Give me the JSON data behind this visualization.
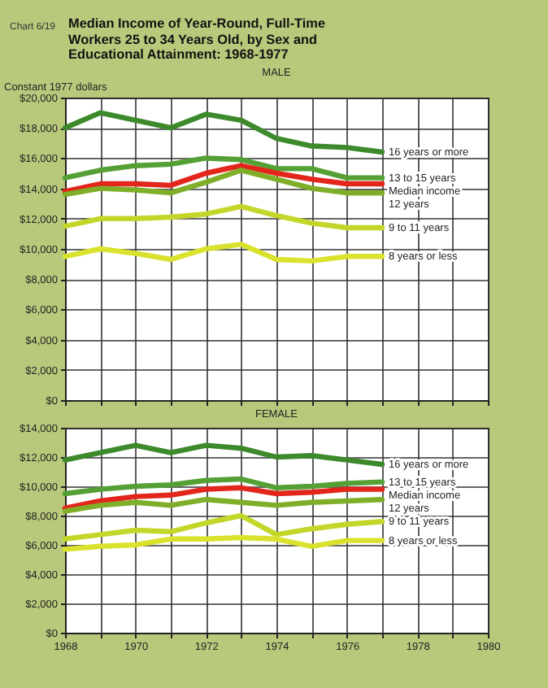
{
  "chart_data": [
    {
      "type": "line",
      "title": "Median Income of Year-Round, Full-Time Workers 25 to 34 Years Old, by Sex and Educational Attainment: 1968-1977",
      "subtitle": "MALE",
      "ylabel": "Constant 1977 dollars",
      "annotations": [
        "Chart 6/19"
      ],
      "x": [
        1968,
        1969,
        1970,
        1971,
        1972,
        1973,
        1974,
        1975,
        1976,
        1977
      ],
      "series": [
        {
          "name": "16 years or more",
          "color": "#3d8a2c",
          "values": [
            18000,
            19000,
            18500,
            18000,
            18900,
            18500,
            17300,
            16800,
            16700,
            16400
          ]
        },
        {
          "name": "13 to 15 years",
          "color": "#55a034",
          "values": [
            14700,
            15200,
            15500,
            15600,
            16000,
            15900,
            15300,
            15300,
            14700,
            14700
          ]
        },
        {
          "name": "Median income",
          "color": "#e2261c",
          "values": [
            13800,
            14300,
            14300,
            14200,
            15000,
            15500,
            15000,
            14600,
            14300,
            14300
          ]
        },
        {
          "name": "12 years",
          "color": "#7fae28",
          "values": [
            13600,
            14000,
            13900,
            13700,
            14400,
            15200,
            14600,
            14000,
            13700,
            13700
          ]
        },
        {
          "name": "9 to 11 years",
          "color": "#c5d62a",
          "values": [
            11500,
            12000,
            12000,
            12100,
            12300,
            12800,
            12200,
            11700,
            11400,
            11400
          ]
        },
        {
          "name": "8 years or less",
          "color": "#d9e22c",
          "values": [
            9500,
            10000,
            9700,
            9300,
            10000,
            10300,
            9300,
            9200,
            9500,
            9500
          ]
        }
      ],
      "xlim": [
        1968,
        1980
      ],
      "xticks": [
        1968,
        {
          "value": 1969,
          "label": null
        },
        1970,
        {
          "value": 1971,
          "label": null
        },
        1972,
        {
          "value": 1973,
          "label": null
        },
        1974,
        {
          "value": 1975,
          "label": null
        },
        1976,
        {
          "value": 1977,
          "label": null
        },
        1978,
        {
          "value": 1979,
          "label": null
        },
        1980
      ],
      "ylim": [
        0,
        20000
      ],
      "yticks": [
        {
          "value": 0,
          "label": "$0"
        },
        {
          "value": 2000,
          "label": "$2,000"
        },
        {
          "value": 4000,
          "label": "$4,000"
        },
        {
          "value": 6000,
          "label": "$6,000"
        },
        {
          "value": 8000,
          "label": "$8,000"
        },
        {
          "value": 10000,
          "label": "$10,000"
        },
        {
          "value": 12000,
          "label": "$12,000"
        },
        {
          "value": 14000,
          "label": "$14,000"
        },
        {
          "value": 16000,
          "label": "$16,000"
        },
        {
          "value": 18000,
          "label": "$18,000"
        },
        {
          "value": 20000,
          "label": "$20,000"
        }
      ],
      "grid": true,
      "tick_labels": "y"
    },
    {
      "type": "line",
      "subtitle": "FEMALE",
      "x": [
        1968,
        1969,
        1970,
        1971,
        1972,
        1973,
        1974,
        1975,
        1976,
        1977
      ],
      "series": [
        {
          "name": "16 years or more",
          "color": "#3d8a2c",
          "values": [
            11800,
            12300,
            12800,
            12300,
            12800,
            12600,
            12000,
            12100,
            11800,
            11500
          ]
        },
        {
          "name": "13 to 15 years",
          "color": "#55a034",
          "values": [
            9500,
            9800,
            10000,
            10100,
            10400,
            10500,
            9900,
            10000,
            10200,
            10300
          ]
        },
        {
          "name": "Median income",
          "color": "#e2261c",
          "values": [
            8500,
            9000,
            9300,
            9400,
            9800,
            9900,
            9500,
            9600,
            9800,
            9800
          ]
        },
        {
          "name": "12 years",
          "color": "#7fae28",
          "values": [
            8300,
            8700,
            8900,
            8700,
            9100,
            8900,
            8700,
            8900,
            9000,
            9100
          ]
        },
        {
          "name": "9 to 11 years",
          "color": "#c5d62a",
          "values": [
            6400,
            6700,
            7000,
            6900,
            7500,
            8000,
            6700,
            7100,
            7400,
            7600
          ]
        },
        {
          "name": "8 years or less",
          "color": "#d9e22c",
          "values": [
            5700,
            5900,
            6000,
            6400,
            6400,
            6500,
            6400,
            5900,
            6300,
            6300
          ]
        }
      ],
      "xlim": [
        1968,
        1980
      ],
      "xticks": [
        1968,
        {
          "value": 1969,
          "label": null
        },
        1970,
        {
          "value": 1971,
          "label": null
        },
        1972,
        {
          "value": 1973,
          "label": null
        },
        1974,
        {
          "value": 1975,
          "label": null
        },
        1976,
        {
          "value": 1977,
          "label": null
        },
        1978,
        {
          "value": 1979,
          "label": null
        },
        1980
      ],
      "ylim": [
        0,
        14000
      ],
      "yticks": [
        {
          "value": 0,
          "label": "$0"
        },
        {
          "value": 2000,
          "label": "$2,000"
        },
        {
          "value": 4000,
          "label": "$4,000"
        },
        {
          "value": 6000,
          "label": "$6,000"
        },
        {
          "value": 8000,
          "label": "$8,000"
        },
        {
          "value": 10000,
          "label": "$10,000"
        },
        {
          "value": 12000,
          "label": "$12,000"
        },
        {
          "value": 14000,
          "label": "$14,000"
        }
      ],
      "grid": true
    }
  ]
}
